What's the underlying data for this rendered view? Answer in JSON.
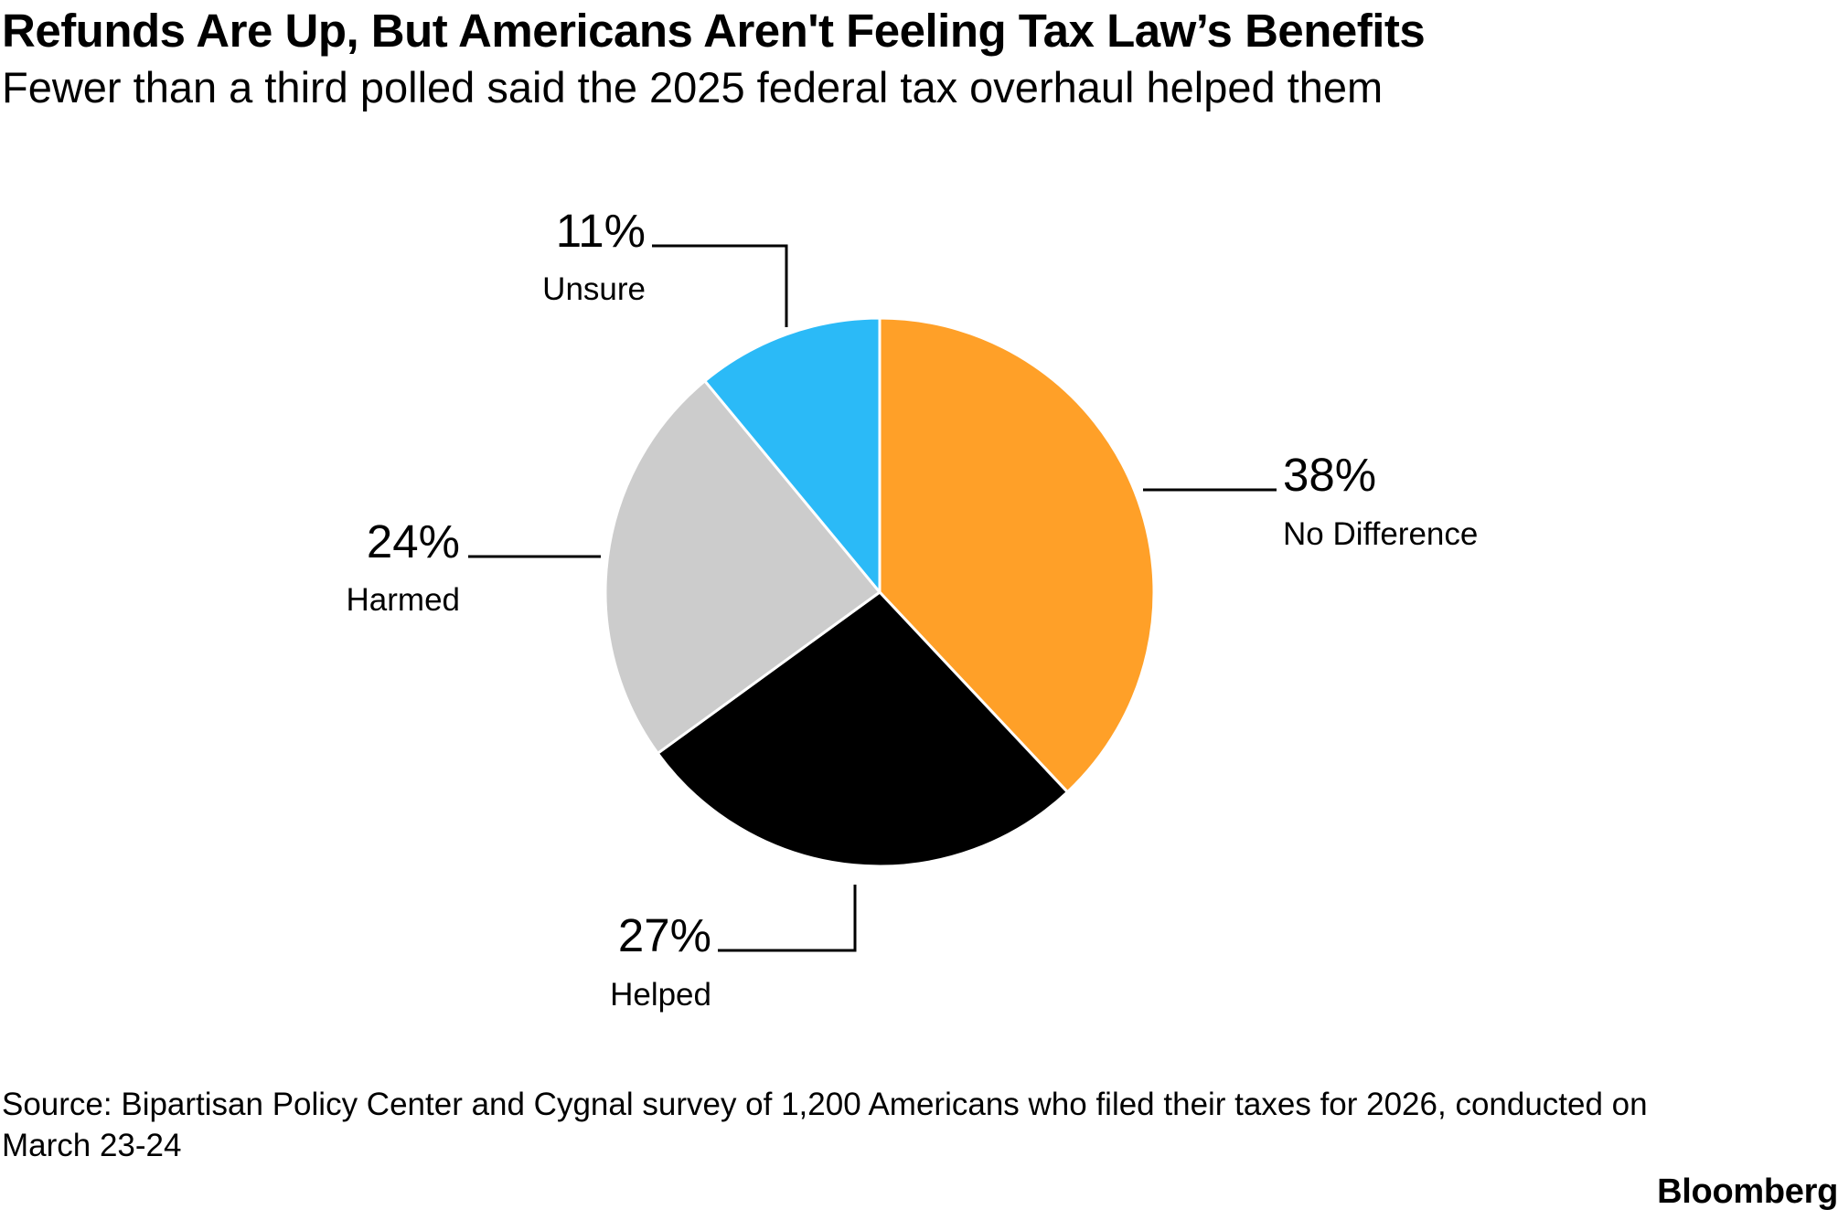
{
  "header": {
    "title": "Refunds Are Up, But Americans Aren't Feeling Tax Law’s Benefits",
    "subtitle": "Fewer than a third polled said the 2025 federal tax overhaul helped them"
  },
  "chart_data": {
    "type": "pie",
    "slices": [
      {
        "label": "No Difference",
        "value": 38,
        "value_label": "38%",
        "color": "#FFA028"
      },
      {
        "label": "Helped",
        "value": 27,
        "value_label": "27%",
        "color": "#000000"
      },
      {
        "label": "Harmed",
        "value": 24,
        "value_label": "24%",
        "color": "#CCCCCC"
      },
      {
        "label": "Unsure",
        "value": 11,
        "value_label": "11%",
        "color": "#2BBAF7"
      }
    ],
    "start": "12 o'clock",
    "direction": "clockwise",
    "legend": "none"
  },
  "footer": {
    "source": "Source: Bipartisan Policy Center and Cygnal survey of 1,200 Americans who filed their taxes for 2026, conducted on March 23-24",
    "logo": "Bloomberg"
  }
}
